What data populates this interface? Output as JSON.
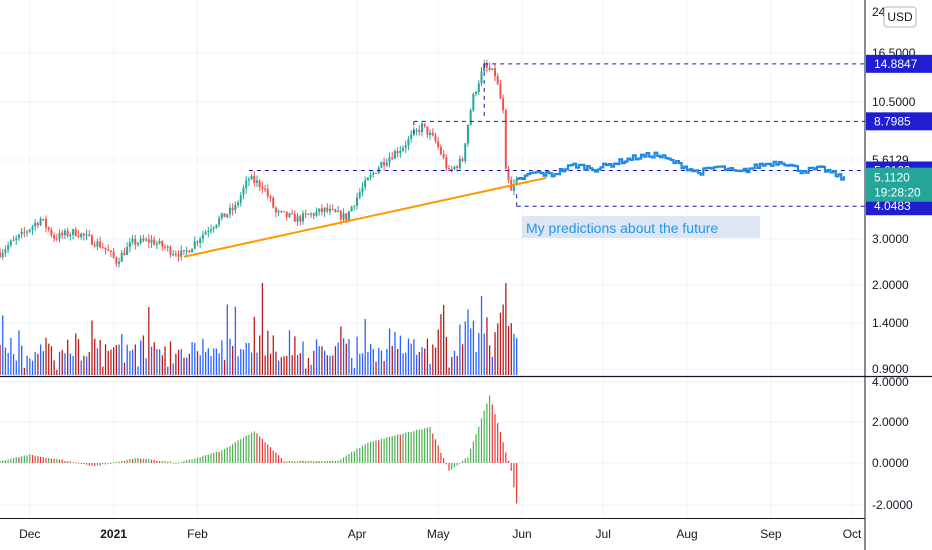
{
  "chart_data": {
    "type": "candlestick",
    "title": "",
    "currency_button": "USD",
    "y_axis_scale": "log",
    "grid": true,
    "colors": {
      "up": "#26a69a",
      "down": "#ef5350",
      "volume_up": "#2962ff",
      "volume_down": "#b71c1c",
      "hist_up": "#4caf50",
      "hist_down": "#e53935",
      "trendline": "#ff9800",
      "level": "#1a1aa6",
      "prediction": "#1e88e5",
      "last_price": "#26a69a",
      "level_badge": "#1f1fd1"
    },
    "x_ticks": [
      "Dec",
      "2021",
      "Feb",
      "Apr",
      "May",
      "Jun",
      "Jul",
      "Aug",
      "Sep",
      "Oct"
    ],
    "price_ticks": [
      "16.5000",
      "10.5000",
      "5.6129",
      "3.0000",
      "2.0000",
      "1.4000",
      "0.9000"
    ],
    "price_axis_top_label": "24",
    "price_ylim": [
      0.9,
      24
    ],
    "levels": [
      {
        "label": "14.8847",
        "value": 14.8847
      },
      {
        "label": "8.7985",
        "value": 8.7985
      },
      {
        "label": "5.6129",
        "value": 5.6129
      },
      {
        "label": "4.0483",
        "value": 4.0483
      }
    ],
    "last_price": {
      "label": "5.1120",
      "value": 5.112,
      "countdown": "19:28:20"
    },
    "annotation": "My predictions about the future",
    "trendline": {
      "from": [
        "2021-01-27",
        2.55
      ],
      "to": [
        "2021-06-10",
        5.25
      ]
    },
    "ohlc_anchor_closes": [
      [
        "2020-11-20",
        2.65
      ],
      [
        "2020-11-28",
        3.1
      ],
      [
        "2020-12-05",
        3.6
      ],
      [
        "2020-12-10",
        3.05
      ],
      [
        "2020-12-18",
        3.2
      ],
      [
        "2020-12-28",
        2.8
      ],
      [
        "2021-01-02",
        2.45
      ],
      [
        "2021-01-08",
        2.9
      ],
      [
        "2021-01-15",
        2.95
      ],
      [
        "2021-01-22",
        2.7
      ],
      [
        "2021-01-27",
        2.6
      ],
      [
        "2021-02-05",
        3.3
      ],
      [
        "2021-02-15",
        4.0
      ],
      [
        "2021-02-20",
        5.2
      ],
      [
        "2021-02-25",
        4.9
      ],
      [
        "2021-03-02",
        3.8
      ],
      [
        "2021-03-10",
        3.6
      ],
      [
        "2021-03-20",
        3.9
      ],
      [
        "2021-03-28",
        3.65
      ],
      [
        "2021-04-02",
        4.6
      ],
      [
        "2021-04-10",
        6.0
      ],
      [
        "2021-04-18",
        7.0
      ],
      [
        "2021-04-25",
        8.4
      ],
      [
        "2021-04-30",
        7.3
      ],
      [
        "2021-05-05",
        5.5
      ],
      [
        "2021-05-10",
        6.2
      ],
      [
        "2021-05-14",
        11.0
      ],
      [
        "2021-05-18",
        14.5
      ],
      [
        "2021-05-22",
        13.5
      ],
      [
        "2021-05-25",
        9.5
      ],
      [
        "2021-05-26",
        5.5
      ],
      [
        "2021-05-28",
        4.6
      ],
      [
        "2021-05-30",
        5.11
      ]
    ],
    "prediction": [
      [
        "2021-05-30",
        5.11
      ],
      [
        "2021-06-05",
        5.5
      ],
      [
        "2021-06-12",
        5.4
      ],
      [
        "2021-06-20",
        5.9
      ],
      [
        "2021-06-28",
        5.7
      ],
      [
        "2021-07-05",
        6.0
      ],
      [
        "2021-07-12",
        6.3
      ],
      [
        "2021-07-20",
        6.5
      ],
      [
        "2021-07-28",
        6.0
      ],
      [
        "2021-08-05",
        5.5
      ],
      [
        "2021-08-12",
        5.8
      ],
      [
        "2021-08-20",
        5.5
      ],
      [
        "2021-08-28",
        5.9
      ],
      [
        "2021-09-05",
        6.1
      ],
      [
        "2021-09-12",
        5.6
      ],
      [
        "2021-09-20",
        5.7
      ],
      [
        "2021-09-28",
        5.2
      ]
    ],
    "volume_max_date": "2021-02-25",
    "histogram_ticks": [
      "4.0000",
      "2.0000",
      "0.0000",
      "-2.0000"
    ],
    "histogram_ylim": [
      -2.4,
      4.0
    ],
    "histogram_anchors": [
      [
        "2020-11-20",
        0.1
      ],
      [
        "2020-12-01",
        0.4
      ],
      [
        "2020-12-15",
        0.1
      ],
      [
        "2020-12-25",
        -0.15
      ],
      [
        "2021-01-10",
        0.25
      ],
      [
        "2021-01-25",
        0.0
      ],
      [
        "2021-02-10",
        0.6
      ],
      [
        "2021-02-22",
        1.55
      ],
      [
        "2021-03-05",
        0.1
      ],
      [
        "2021-03-25",
        0.1
      ],
      [
        "2021-04-05",
        1.0
      ],
      [
        "2021-04-20",
        1.5
      ],
      [
        "2021-04-28",
        1.75
      ],
      [
        "2021-05-05",
        -0.4
      ],
      [
        "2021-05-12",
        0.3
      ],
      [
        "2021-05-20",
        3.3
      ],
      [
        "2021-05-24",
        1.5
      ],
      [
        "2021-05-28",
        -0.4
      ],
      [
        "2021-05-30",
        -2.0
      ]
    ]
  }
}
